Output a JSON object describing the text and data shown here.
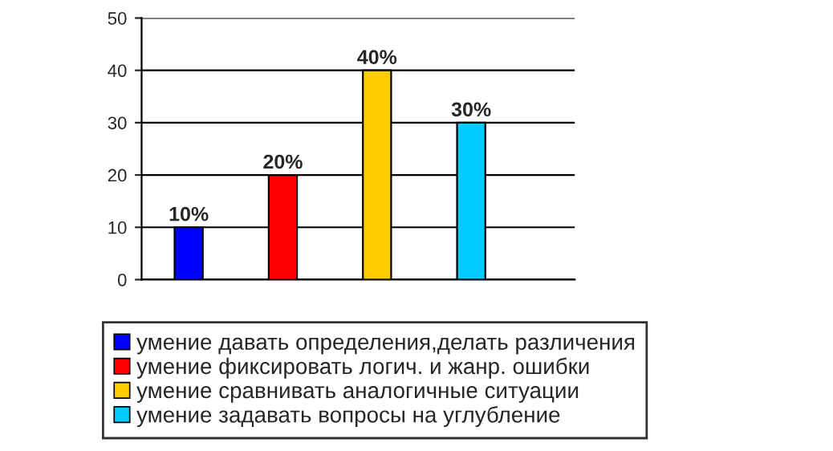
{
  "chart_data": {
    "type": "bar",
    "categories": [
      null,
      null,
      null,
      null
    ],
    "series": [
      {
        "name": "умение давать определения,делать различения",
        "color": "#0000ff",
        "values": [
          10,
          null,
          null,
          null
        ],
        "value_labels": [
          "10%",
          null,
          null,
          null
        ]
      },
      {
        "name": "умение фиксировать логич. и жанр. ошибки",
        "color": "#ff0000",
        "values": [
          null,
          20,
          null,
          null
        ],
        "value_labels": [
          null,
          "20%",
          null,
          null
        ]
      },
      {
        "name": "умение сравнивать аналогичные ситуации",
        "color": "#ffcc00",
        "values": [
          null,
          null,
          40,
          null
        ],
        "value_labels": [
          null,
          null,
          "40%",
          null
        ]
      },
      {
        "name": "умение задавать вопросы на углубление",
        "color": "#00ccff",
        "values": [
          null,
          null,
          null,
          30
        ],
        "value_labels": [
          null,
          null,
          null,
          "30%"
        ]
      }
    ],
    "ylim": [
      0,
      50
    ],
    "yticks": [
      0,
      10,
      20,
      30,
      40,
      50
    ],
    "grid": "y",
    "legend": "bottom"
  }
}
